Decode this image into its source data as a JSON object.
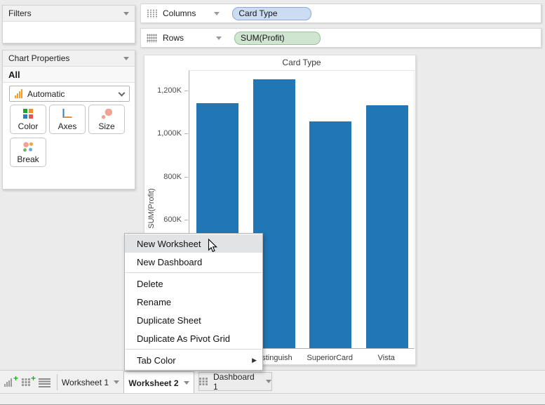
{
  "filters_panel": {
    "title": "Filters"
  },
  "chart_properties_panel": {
    "title": "Chart Properties",
    "scope_label": "All",
    "chart_type_dropdown": {
      "value": "Automatic"
    },
    "buttons": [
      {
        "label": "Color"
      },
      {
        "label": "Axes"
      },
      {
        "label": "Size"
      },
      {
        "label": "Break"
      }
    ]
  },
  "shelves": {
    "columns": {
      "label": "Columns",
      "pill": {
        "text": "Card Type"
      }
    },
    "rows": {
      "label": "Rows",
      "pill": {
        "text": "SUM(Profit)"
      }
    }
  },
  "chart_data": {
    "type": "bar",
    "title": "Card Type",
    "ylabel": "SUM(Profit)",
    "categories": [
      "",
      "Distinguish",
      "SuperiorCard",
      "Vista"
    ],
    "values_k": [
      1138,
      1249,
      1054,
      1129
    ],
    "yticks": [
      {
        "v": 600,
        "label": "600K"
      },
      {
        "v": 800,
        "label": "800K"
      },
      {
        "v": 1000,
        "label": "1,000K"
      },
      {
        "v": 1200,
        "label": "1,200K"
      }
    ],
    "ylim_k": [
      0,
      1294
    ],
    "bar_color": "#2176b5",
    "legend": "none",
    "grid": "off"
  },
  "context_menu": {
    "items": [
      {
        "label": "New Worksheet",
        "highlighted": true
      },
      {
        "label": "New Dashboard",
        "separator_after": true
      },
      {
        "label": "Delete"
      },
      {
        "label": "Rename"
      },
      {
        "label": "Duplicate Sheet"
      },
      {
        "label": "Duplicate As Pivot Grid",
        "separator_after": true
      },
      {
        "label": "Tab Color",
        "submenu": true
      }
    ]
  },
  "tab_bar": {
    "tabs": [
      {
        "label": "Worksheet 1",
        "active": false
      },
      {
        "label": "Worksheet 2",
        "active": true
      },
      {
        "label": "Dashboard 1",
        "active": false
      }
    ]
  },
  "colors": {
    "bar": "#2176b5",
    "pill_dimension_fill": "#cbdcf3",
    "pill_dimension_border": "#8fa9d4",
    "pill_measure_fill": "#cfe5cf",
    "pill_measure_border": "#9cc09c",
    "menu_highlight": "#e2e3e5",
    "accent_orange": "#f59e2a",
    "plus_green": "#1fa81f"
  }
}
